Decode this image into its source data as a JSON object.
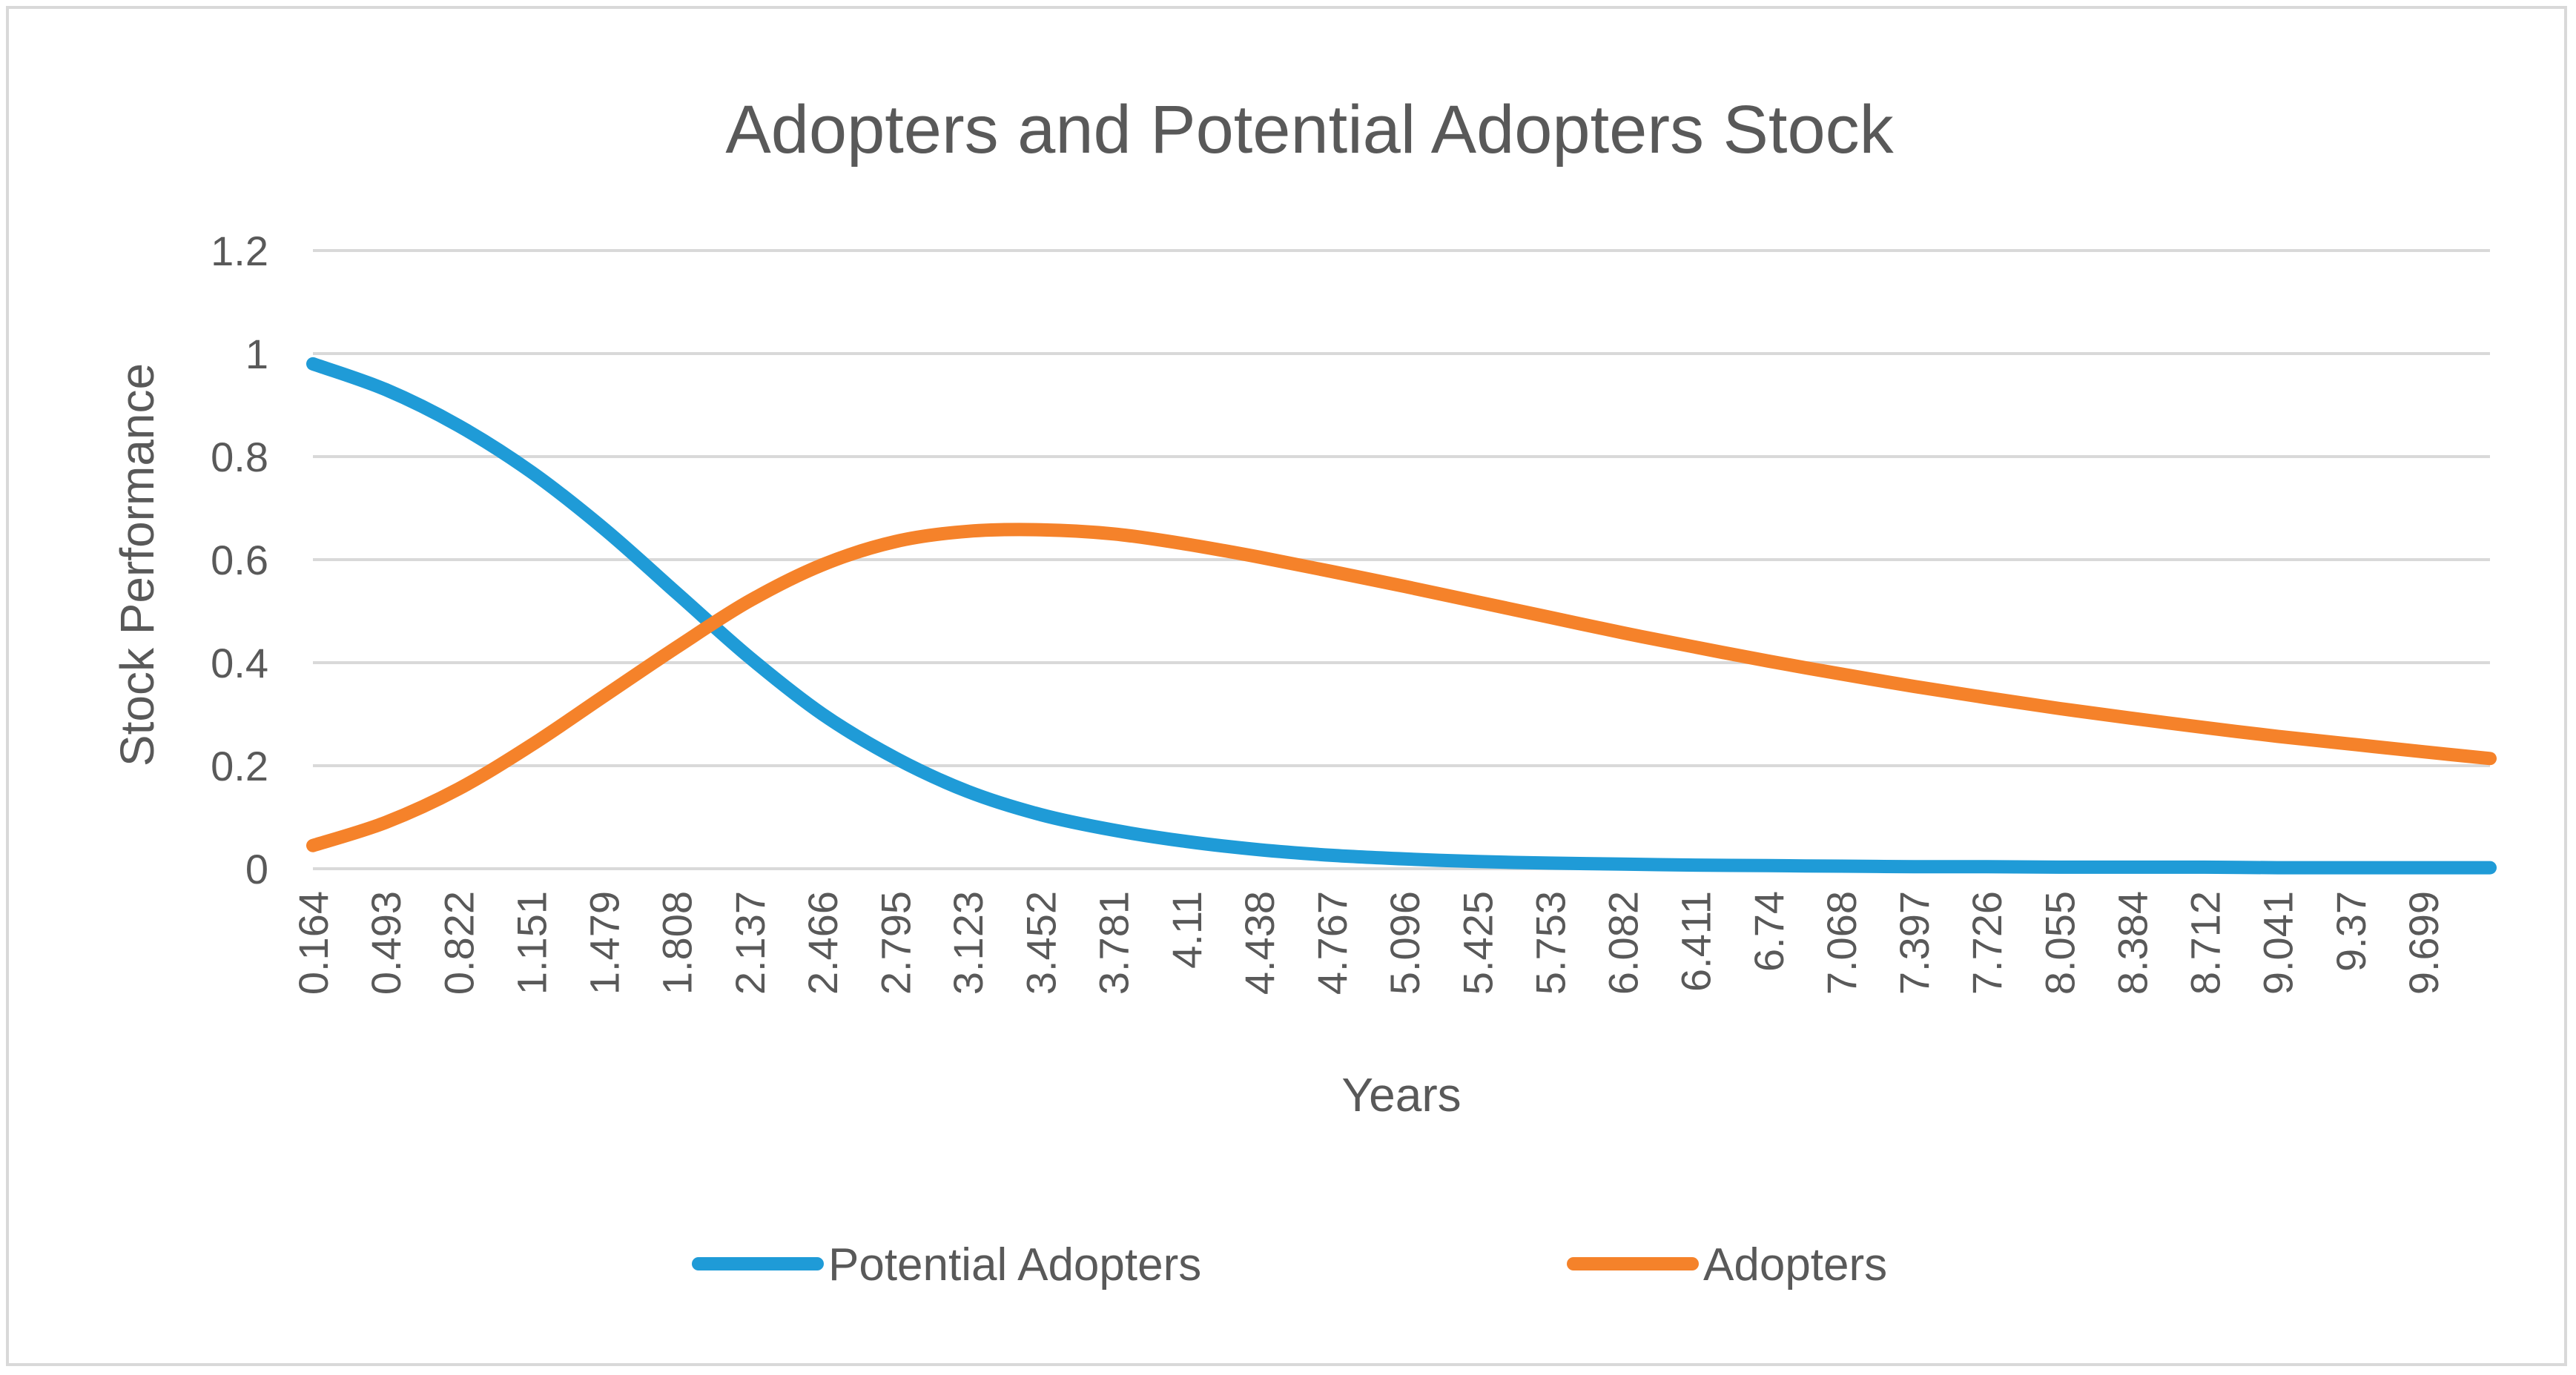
{
  "colors": {
    "potential": "#1f9bd7",
    "adopters": "#f5822a",
    "grid": "#d9d9d9",
    "text": "#595959"
  },
  "chart_data": {
    "type": "line",
    "title": "Adopters and Potential Adopters Stock",
    "xlabel": "Years",
    "ylabel": "Stock Performance",
    "ylim": [
      0,
      1.2
    ],
    "yticks": [
      "0",
      "0.2",
      "0.4",
      "0.6",
      "0.8",
      "1",
      "1.2"
    ],
    "ytick_values": [
      0,
      0.2,
      0.4,
      0.6,
      0.8,
      1,
      1.2
    ],
    "x_range": [
      0.164,
      10.0
    ],
    "x_tick_labels": [
      "0.164",
      "0.493",
      "0.822",
      "1.151",
      "1.479",
      "1.808",
      "2.137",
      "2.466",
      "2.795",
      "3.123",
      "3.452",
      "3.781",
      "4.11",
      "4.438",
      "4.767",
      "5.096",
      "5.425",
      "5.753",
      "6.082",
      "6.411",
      "6.74",
      "7.068",
      "7.397",
      "7.726",
      "8.055",
      "8.384",
      "8.712",
      "9.041",
      "9.37",
      "9.699"
    ],
    "x_tick_values": [
      0.164,
      0.493,
      0.822,
      1.151,
      1.479,
      1.808,
      2.137,
      2.466,
      2.795,
      3.123,
      3.452,
      3.781,
      4.11,
      4.438,
      4.767,
      5.096,
      5.425,
      5.753,
      6.082,
      6.411,
      6.74,
      7.068,
      7.397,
      7.726,
      8.055,
      8.384,
      8.712,
      9.041,
      9.37,
      9.699
    ],
    "legend_position": "bottom",
    "series": [
      {
        "name": "Potential Adopters",
        "x": [
          0.164,
          0.493,
          0.822,
          1.151,
          1.479,
          1.808,
          2.137,
          2.466,
          2.795,
          3.123,
          3.452,
          3.781,
          4.11,
          4.438,
          4.767,
          5.096,
          5.425,
          5.753,
          6.082,
          6.411,
          6.74,
          7.068,
          7.397,
          7.726,
          8.055,
          8.384,
          8.712,
          9.041,
          9.37,
          9.699,
          10.0
        ],
        "values": [
          0.98,
          0.93,
          0.86,
          0.77,
          0.66,
          0.535,
          0.41,
          0.3,
          0.215,
          0.15,
          0.105,
          0.075,
          0.053,
          0.037,
          0.026,
          0.019,
          0.014,
          0.011,
          0.009,
          0.007,
          0.006,
          0.005,
          0.004,
          0.004,
          0.003,
          0.003,
          0.003,
          0.002,
          0.002,
          0.002,
          0.002
        ]
      },
      {
        "name": "Adopters",
        "x": [
          0.164,
          0.493,
          0.822,
          1.151,
          1.479,
          1.808,
          2.137,
          2.466,
          2.795,
          3.123,
          3.452,
          3.781,
          4.11,
          4.438,
          4.767,
          5.096,
          5.425,
          5.753,
          6.082,
          6.411,
          6.74,
          7.068,
          7.397,
          7.726,
          8.055,
          8.384,
          8.712,
          9.041,
          9.37,
          9.699,
          10.0
        ],
        "values": [
          0.045,
          0.09,
          0.155,
          0.24,
          0.335,
          0.43,
          0.52,
          0.59,
          0.635,
          0.655,
          0.658,
          0.65,
          0.63,
          0.605,
          0.577,
          0.548,
          0.518,
          0.488,
          0.458,
          0.43,
          0.403,
          0.378,
          0.354,
          0.332,
          0.311,
          0.292,
          0.274,
          0.257,
          0.242,
          0.227,
          0.214
        ]
      }
    ]
  }
}
